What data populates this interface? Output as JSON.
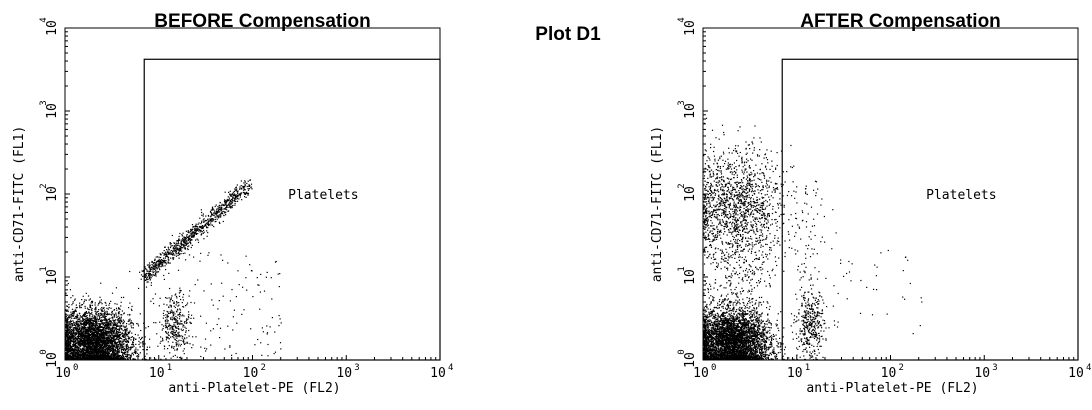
{
  "page_title": "Plot D1",
  "chart_data": [
    {
      "type": "scatter",
      "title": "BEFORE Compensation",
      "xlabel": "anti-Platelet-PE (FL2)",
      "ylabel": "anti-CD71-FITC (FL1)",
      "xscale": "log",
      "yscale": "log",
      "xlim": [
        1,
        10000
      ],
      "ylim": [
        1,
        10000
      ],
      "tick_values": [
        1,
        10,
        100,
        1000,
        10000
      ],
      "tick_bases": [
        "10",
        "10",
        "10",
        "10",
        "10"
      ],
      "tick_exponents": [
        "0",
        "1",
        "2",
        "3",
        "4"
      ],
      "gate": {
        "label": "Platelets",
        "x_min": 7,
        "x_max": 10000,
        "y_min": 1,
        "y_max": 4200
      },
      "populations": [
        {
          "name": "main",
          "x_center": 2.0,
          "y_center": 1.6,
          "x_spread_decades": 0.2,
          "y_spread_decades": 0.2,
          "count": 4200
        },
        {
          "name": "diagonal",
          "x_from": 7,
          "x_to": 90,
          "slope": 1.0,
          "y_offset_decades": 0.15,
          "count": 900
        },
        {
          "name": "platelet_cluster",
          "x_center": 15,
          "y_center": 2.7,
          "x_spread_decades": 0.08,
          "y_spread_decades": 0.18,
          "count": 300
        },
        {
          "name": "scattered",
          "x_range": [
            7,
            200
          ],
          "y_range": [
            1,
            20
          ],
          "count": 150
        }
      ]
    },
    {
      "type": "scatter",
      "title": "AFTER Compensation",
      "xlabel": "anti-Platelet-PE (FL2)",
      "ylabel": "anti-CD71-FITC (FL1)",
      "xscale": "log",
      "yscale": "log",
      "xlim": [
        1,
        10000
      ],
      "ylim": [
        1,
        10000
      ],
      "tick_values": [
        1,
        10,
        100,
        1000,
        10000
      ],
      "tick_bases": [
        "10",
        "10",
        "10",
        "10",
        "10"
      ],
      "tick_exponents": [
        "0",
        "1",
        "2",
        "3",
        "4"
      ],
      "gate": {
        "label": "Platelets",
        "x_min": 7,
        "x_max": 10000,
        "y_min": 1,
        "y_max": 4200
      },
      "populations": [
        {
          "name": "main",
          "x_center": 2.0,
          "y_center": 1.6,
          "x_spread_decades": 0.2,
          "y_spread_decades": 0.2,
          "count": 4200
        },
        {
          "name": "cd71_high",
          "x_center": 2.2,
          "y_center": 70,
          "x_spread_decades": 0.25,
          "y_spread_decades": 0.35,
          "count": 1300
        },
        {
          "name": "column_left",
          "x_center": 2.2,
          "y_from": 2,
          "y_to": 150,
          "x_spread_decades": 0.25,
          "count": 500
        },
        {
          "name": "platelet_cluster",
          "x_center": 14,
          "y_center": 2.5,
          "x_spread_decades": 0.07,
          "y_spread_decades": 0.2,
          "count": 330
        },
        {
          "name": "platelet_column",
          "x_center": 13,
          "y_from": 1,
          "y_to": 150,
          "x_spread_decades": 0.08,
          "count": 120
        },
        {
          "name": "scattered",
          "x_range": [
            20,
            250
          ],
          "y_range": [
            1.5,
            25
          ],
          "count": 40
        }
      ]
    }
  ]
}
